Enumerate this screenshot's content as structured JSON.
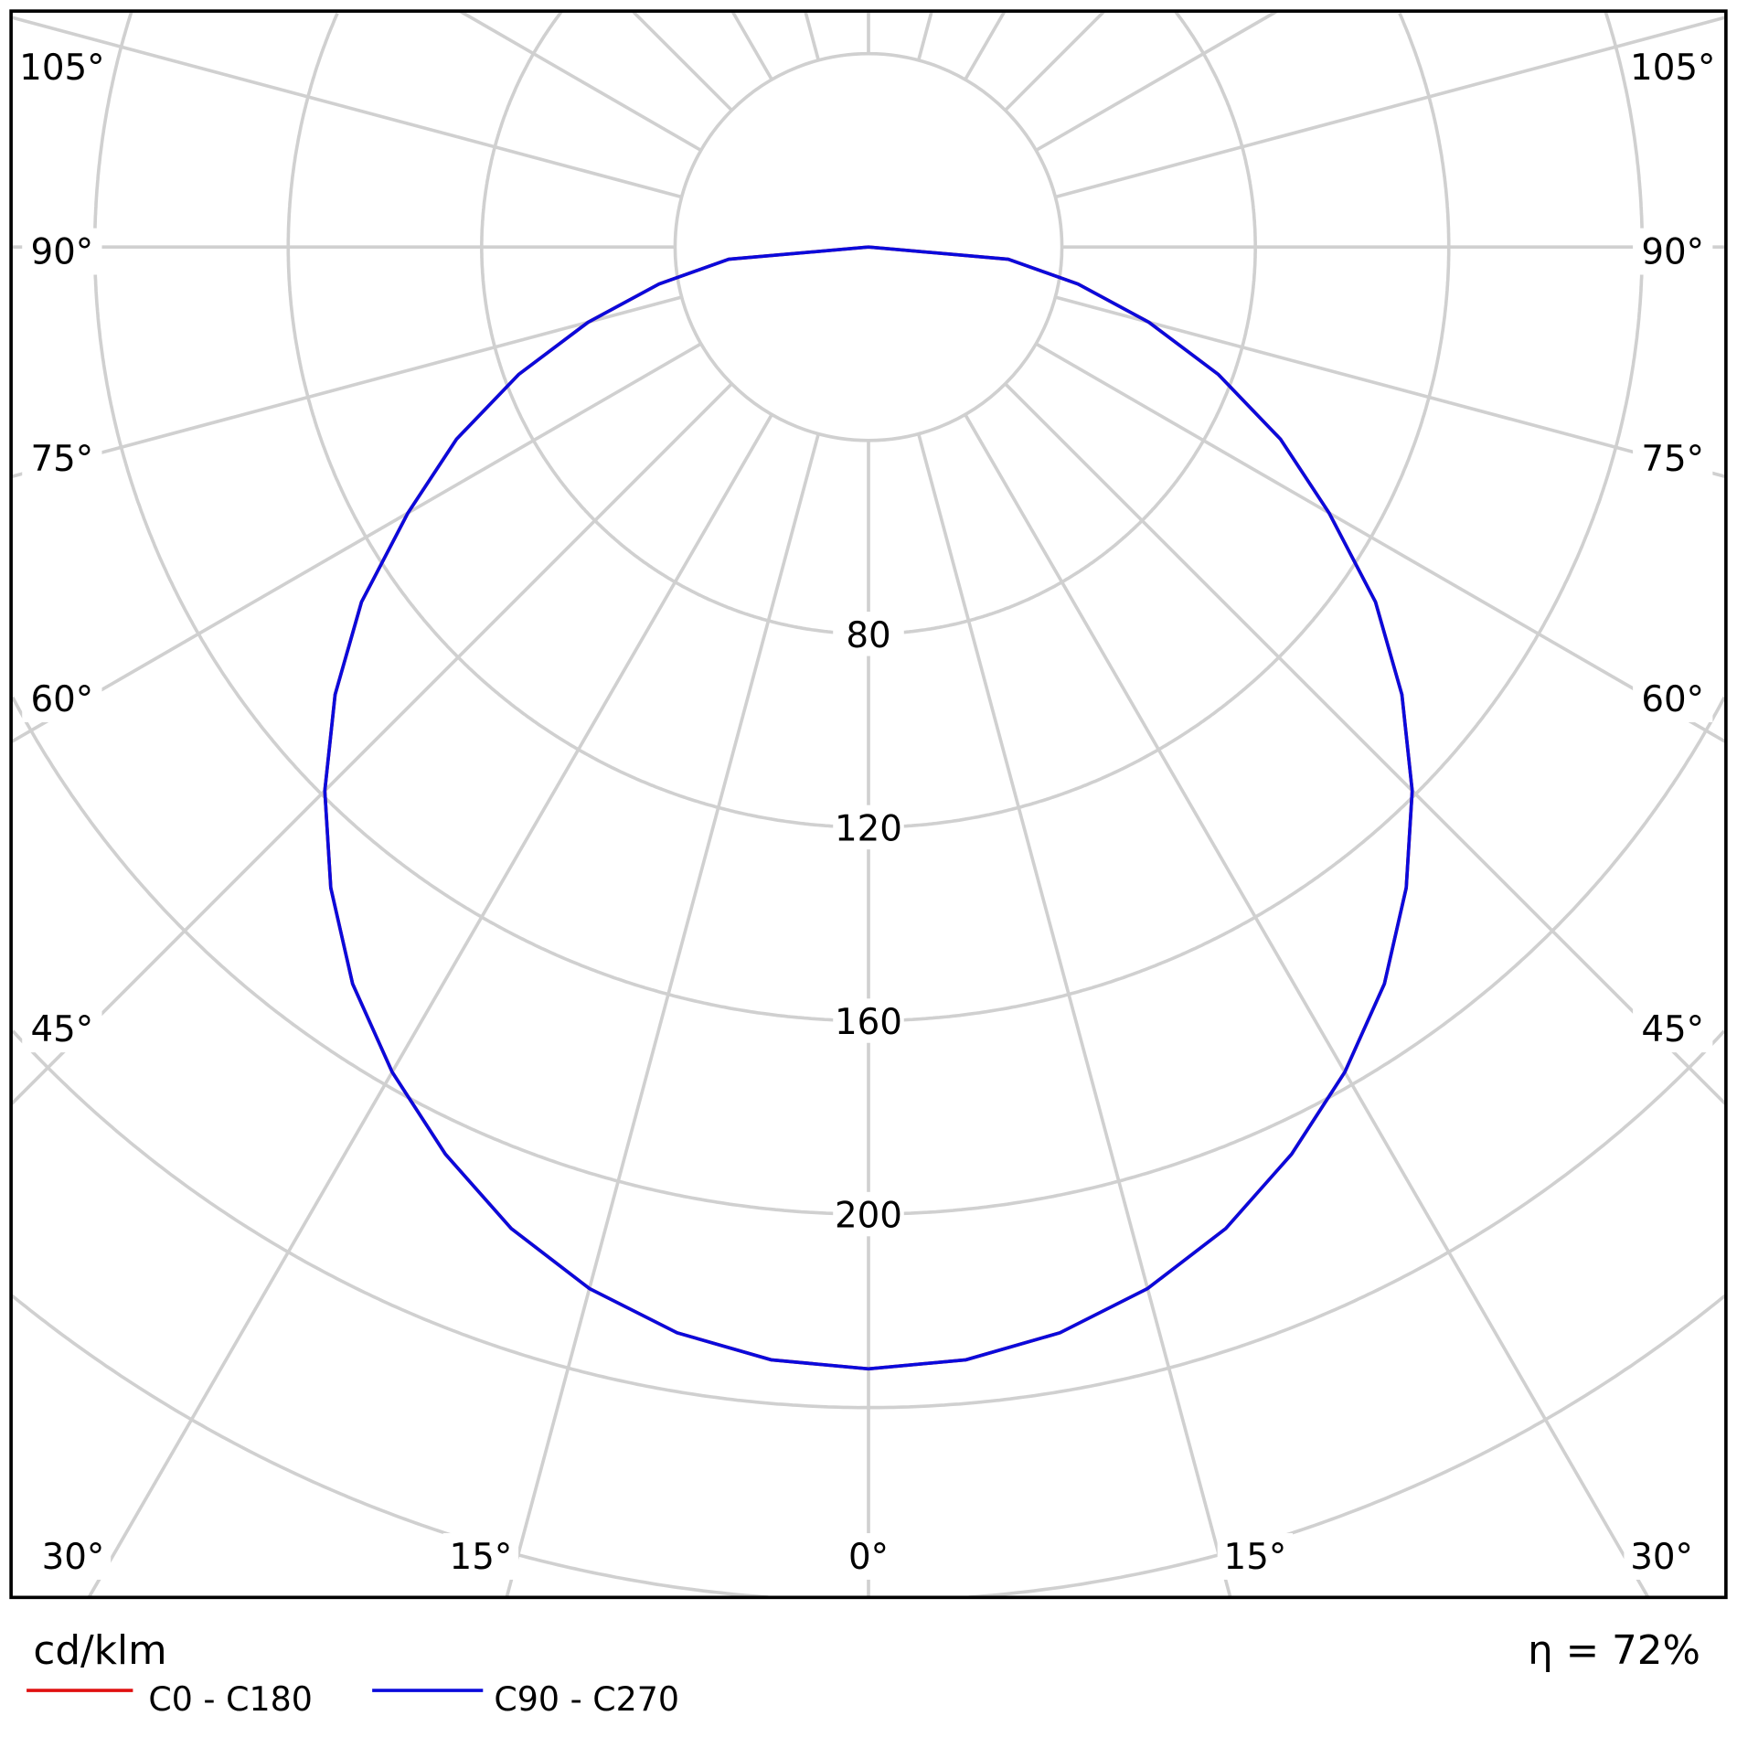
{
  "chart_data": {
    "type": "polar",
    "unit_label": "cd/klm",
    "efficiency_label": "η = 72%",
    "radial_ticks": [
      40,
      80,
      120,
      160,
      200,
      240,
      280
    ],
    "radial_tick_labels": [
      "80",
      "120",
      "160",
      "200"
    ],
    "radial_label_values": [
      80,
      120,
      160,
      200
    ],
    "angle_labels_side": [
      "105°",
      "90°",
      "75°",
      "60°",
      "45°"
    ],
    "angle_label_side_values": [
      105,
      90,
      75,
      60,
      45
    ],
    "angle_labels_bottom": [
      "30°",
      "15°",
      "0°",
      "15°",
      "30°"
    ],
    "angle_label_bottom_values": [
      -30,
      -15,
      0,
      15,
      30
    ],
    "grid": true,
    "legend_placement": "bottom-left",
    "angles": [
      0,
      5,
      10,
      15,
      20,
      25,
      30,
      35,
      40,
      45,
      50,
      55,
      60,
      65,
      70,
      75,
      80,
      85,
      90
    ],
    "series": [
      {
        "name": "C0 - C180",
        "color": "#e01010",
        "values": [
          232,
          231,
          228,
          223,
          216,
          207,
          197,
          186,
          173,
          159,
          144,
          128,
          110,
          94,
          77,
          60,
          44,
          29,
          0
        ]
      },
      {
        "name": "C90 - C270",
        "color": "#0a0adc",
        "values": [
          232,
          231,
          228,
          223,
          216,
          207,
          197,
          186,
          173,
          159,
          144,
          128,
          110,
          94,
          77,
          60,
          44,
          29,
          0
        ]
      }
    ]
  }
}
